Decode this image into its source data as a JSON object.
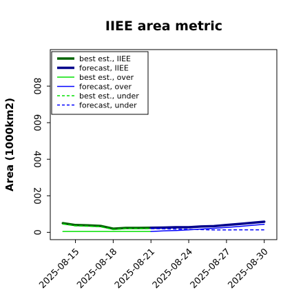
{
  "chart_data": {
    "type": "line",
    "title": "IIEE area metric",
    "xlabel": "",
    "ylabel": "Area (1000km2)",
    "x": [
      "2025-08-14",
      "2025-08-15",
      "2025-08-16",
      "2025-08-17",
      "2025-08-18",
      "2025-08-19",
      "2025-08-20",
      "2025-08-21",
      "2025-08-22",
      "2025-08-23",
      "2025-08-24",
      "2025-08-25",
      "2025-08-26",
      "2025-08-27",
      "2025-08-28",
      "2025-08-29",
      "2025-08-30"
    ],
    "xticks": [
      "2025-08-15",
      "2025-08-18",
      "2025-08-21",
      "2025-08-24",
      "2025-08-27",
      "2025-08-30"
    ],
    "highlighted_xtick": "2025-08-21",
    "highlight_color": "#228B22",
    "xlim": [
      "2025-08-13",
      "2025-08-31"
    ],
    "yticks": [
      0,
      200,
      400,
      600,
      800
    ],
    "ylim": [
      -40,
      1000
    ],
    "legend_position": "upper left",
    "series": [
      {
        "name": "best est., IIEE",
        "color": "#006400",
        "style": "solid",
        "width": 3.5,
        "x": [
          "2025-08-14",
          "2025-08-15",
          "2025-08-16",
          "2025-08-17",
          "2025-08-18",
          "2025-08-19",
          "2025-08-20",
          "2025-08-21"
        ],
        "values": [
          50,
          40,
          38,
          35,
          20,
          24,
          24,
          25
        ]
      },
      {
        "name": "forecast, IIEE",
        "color": "#00008B",
        "style": "solid",
        "width": 3.5,
        "x": [
          "2025-08-21",
          "2025-08-22",
          "2025-08-23",
          "2025-08-24",
          "2025-08-25",
          "2025-08-26",
          "2025-08-27",
          "2025-08-28",
          "2025-08-29",
          "2025-08-30"
        ],
        "values": [
          25,
          26,
          28,
          28,
          32,
          34,
          40,
          46,
          52,
          58
        ]
      },
      {
        "name": "best est., over",
        "color": "#00E000",
        "style": "solid",
        "width": 1.5,
        "x": [
          "2025-08-14",
          "2025-08-15",
          "2025-08-16",
          "2025-08-17",
          "2025-08-18",
          "2025-08-19",
          "2025-08-20",
          "2025-08-21"
        ],
        "values": [
          5,
          5,
          5,
          5,
          5,
          5,
          5,
          5
        ]
      },
      {
        "name": "forecast, over",
        "color": "#0000FF",
        "style": "solid",
        "width": 1.5,
        "x": [
          "2025-08-21",
          "2025-08-22",
          "2025-08-23",
          "2025-08-24",
          "2025-08-25",
          "2025-08-26",
          "2025-08-27",
          "2025-08-28",
          "2025-08-29",
          "2025-08-30"
        ],
        "values": [
          5,
          8,
          10,
          14,
          18,
          22,
          27,
          32,
          38,
          44
        ]
      },
      {
        "name": "best est., under",
        "color": "#00E000",
        "style": "dashed",
        "width": 1.5,
        "x": [
          "2025-08-14",
          "2025-08-15",
          "2025-08-16",
          "2025-08-17",
          "2025-08-18",
          "2025-08-19",
          "2025-08-20",
          "2025-08-21"
        ],
        "values": [
          45,
          35,
          33,
          30,
          15,
          19,
          19,
          20
        ]
      },
      {
        "name": "forecast, under",
        "color": "#0000FF",
        "style": "dashed",
        "width": 1.5,
        "x": [
          "2025-08-21",
          "2025-08-22",
          "2025-08-23",
          "2025-08-24",
          "2025-08-25",
          "2025-08-26",
          "2025-08-27",
          "2025-08-28",
          "2025-08-29",
          "2025-08-30"
        ],
        "values": [
          20,
          19,
          18,
          16,
          15,
          13,
          13,
          14,
          14,
          14
        ]
      }
    ]
  }
}
